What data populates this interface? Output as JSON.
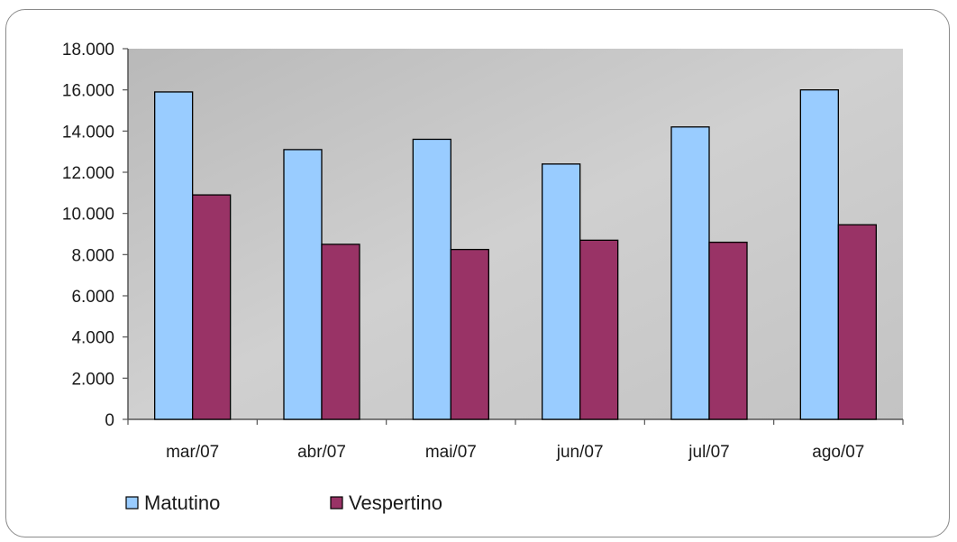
{
  "chart_data": {
    "type": "bar",
    "categories": [
      "mar/07",
      "abr/07",
      "mai/07",
      "jun/07",
      "jul/07",
      "ago/07"
    ],
    "series": [
      {
        "name": "Matutino",
        "color": "#99ccff",
        "values": [
          15900,
          13100,
          13600,
          12400,
          14200,
          16000
        ]
      },
      {
        "name": "Vespertino",
        "color": "#993366",
        "values": [
          10900,
          8500,
          8250,
          8700,
          8600,
          9450
        ]
      }
    ],
    "ylim": [
      0,
      18000
    ],
    "yticks": [
      "0",
      "2.000",
      "4.000",
      "6.000",
      "8.000",
      "10.000",
      "12.000",
      "14.000",
      "16.000",
      "18.000"
    ],
    "title": "",
    "xlabel": "",
    "ylabel": "",
    "grid": false,
    "legend_position": "bottom-left",
    "plot_background": "#c0c0c0"
  }
}
